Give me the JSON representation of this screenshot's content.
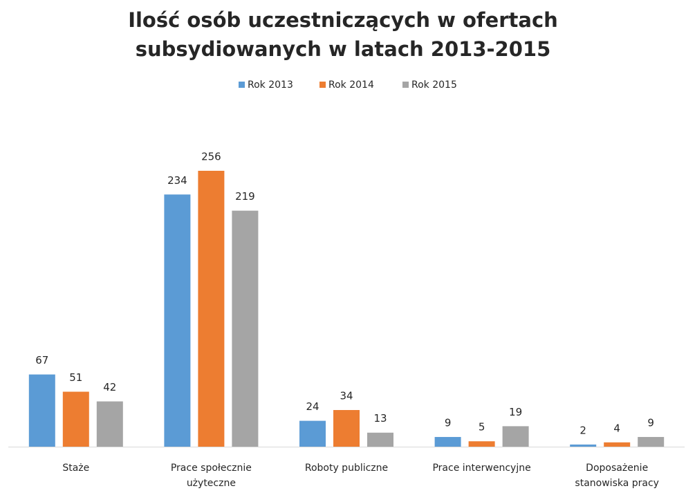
{
  "chart_data": {
    "type": "bar",
    "title": [
      "Ilość osób uczestniczących  w ofertach",
      "subsydiowanych w latach 2013-2015"
    ],
    "categories": [
      "Staże",
      "Prace społecznie użyteczne",
      "Roboty publiczne",
      "Prace interwencyjne",
      "Doposażenie stanowiska pracy"
    ],
    "series": [
      {
        "name": "Rok 2013",
        "color": "#5b9bd5",
        "values": [
          67,
          234,
          24,
          9,
          2
        ]
      },
      {
        "name": "Rok 2014",
        "color": "#ed7d31",
        "values": [
          51,
          256,
          34,
          5,
          4
        ]
      },
      {
        "name": "Rok 2015",
        "color": "#a5a5a5",
        "values": [
          42,
          219,
          13,
          19,
          9
        ]
      }
    ],
    "legend": "top"
  }
}
